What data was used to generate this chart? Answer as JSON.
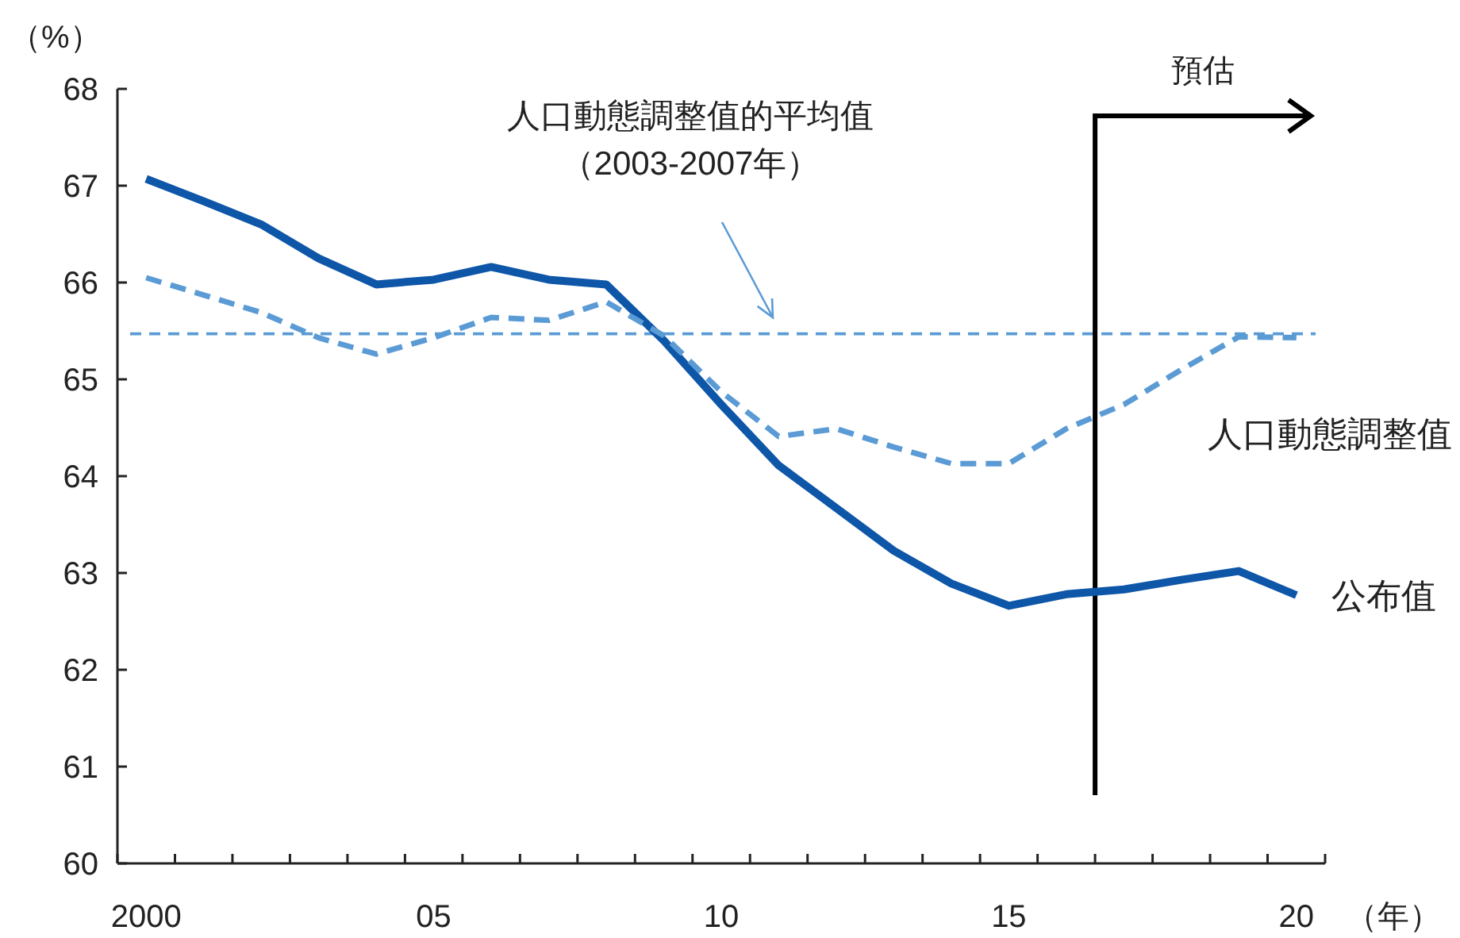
{
  "chart_data": {
    "type": "line",
    "ylabel": "（%）",
    "xlabel": "（年）",
    "x": [
      2000,
      2001,
      2002,
      2003,
      2004,
      2005,
      2006,
      2007,
      2008,
      2009,
      2010,
      2011,
      2012,
      2013,
      2014,
      2015,
      2016,
      2017,
      2018,
      2019,
      2020
    ],
    "series": [
      {
        "name": "公布值",
        "color": "#0e56a8",
        "line_style": "solid",
        "values": [
          67.07,
          66.84,
          66.6,
          66.25,
          65.98,
          66.03,
          66.16,
          66.03,
          65.98,
          65.4,
          64.74,
          64.11,
          63.67,
          63.23,
          62.89,
          62.66,
          62.78,
          62.83,
          62.93,
          63.02,
          62.77
        ]
      },
      {
        "name": "人口動態調整值",
        "color": "#5b9bd5",
        "line_style": "dashed",
        "values": [
          66.05,
          65.87,
          65.69,
          65.43,
          65.26,
          65.43,
          65.64,
          65.61,
          65.8,
          65.45,
          64.87,
          64.41,
          64.49,
          64.3,
          64.13,
          64.13,
          64.49,
          64.74,
          65.1,
          65.44,
          65.43
        ]
      }
    ],
    "xlim": [
      1999.5,
      2020.5
    ],
    "xticks": [
      {
        "value": 2000,
        "label": "2000"
      },
      {
        "value": 2005,
        "label": "05"
      },
      {
        "value": 2010,
        "label": "10"
      },
      {
        "value": 2015,
        "label": "15"
      },
      {
        "value": 2020,
        "label": "20"
      },
      {
        "value": 1999.5,
        "label": null
      },
      {
        "value": 2000.5,
        "label": null
      },
      {
        "value": 2001.5,
        "label": null
      },
      {
        "value": 2002.5,
        "label": null
      },
      {
        "value": 2003.5,
        "label": null
      },
      {
        "value": 2004.5,
        "label": null
      },
      {
        "value": 2005.5,
        "label": null
      },
      {
        "value": 2006.5,
        "label": null
      },
      {
        "value": 2007.5,
        "label": null
      },
      {
        "value": 2008.5,
        "label": null
      },
      {
        "value": 2009.5,
        "label": null
      },
      {
        "value": 2010.5,
        "label": null
      },
      {
        "value": 2011.5,
        "label": null
      },
      {
        "value": 2012.5,
        "label": null
      },
      {
        "value": 2013.5,
        "label": null
      },
      {
        "value": 2014.5,
        "label": null
      },
      {
        "value": 2015.5,
        "label": null
      },
      {
        "value": 2016.5,
        "label": null
      },
      {
        "value": 2017.5,
        "label": null
      },
      {
        "value": 2018.5,
        "label": null
      },
      {
        "value": 2019.5,
        "label": null
      },
      {
        "value": 2020.5,
        "label": null
      }
    ],
    "ylim": [
      60,
      68
    ],
    "yticks": [
      60,
      61,
      62,
      63,
      64,
      65,
      66,
      67,
      68
    ],
    "ref_lines": [
      {
        "axis": "y",
        "value": 65.47,
        "color": "#5b9bd5",
        "line_style": "dashed"
      },
      {
        "axis": "x",
        "value": 2016.5,
        "label": "預估",
        "color": "#000000",
        "line_style": "solid"
      }
    ],
    "annotations": [
      "人口動態調整值的平均值",
      "（2003-2007年）"
    ],
    "grid": false,
    "legend": false,
    "marker": "none"
  }
}
